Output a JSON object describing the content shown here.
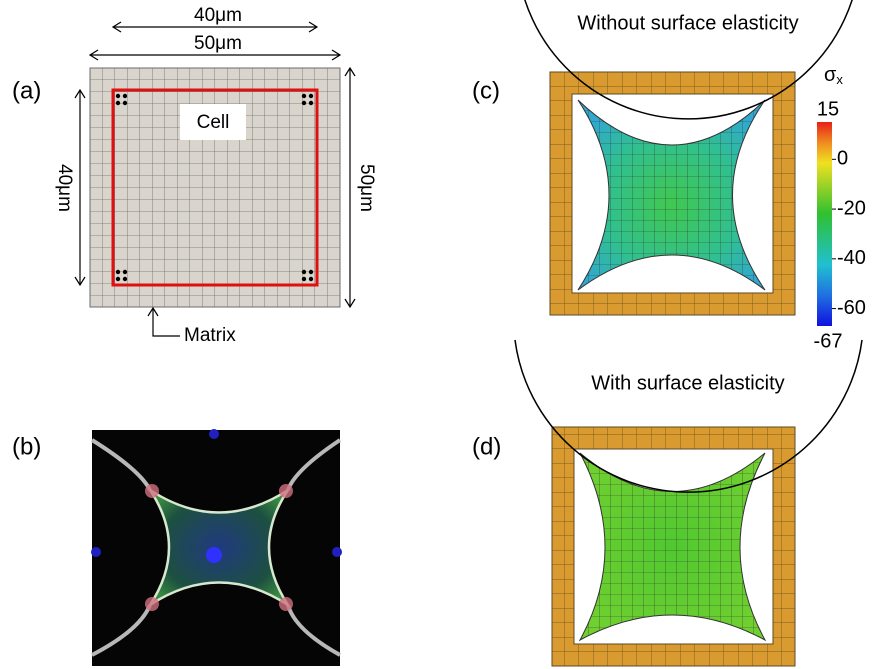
{
  "panels": {
    "a": {
      "label": "(a)",
      "cell_width": "40μm",
      "matrix_width": "50μm",
      "cell_height": "40μm",
      "matrix_height": "50μm",
      "cell": "Cell",
      "matrix": "Matrix"
    },
    "b": {
      "label": "(b)"
    },
    "c": {
      "label": "(c)",
      "title": "Without surface elasticity"
    },
    "d": {
      "label": "(d)",
      "title": "With surface elasticity"
    }
  },
  "colorbar": {
    "symbol": "σ",
    "subscript": "x",
    "limits": [
      -67,
      15
    ],
    "ticks": [
      0,
      -20,
      -40,
      -60
    ]
  }
}
